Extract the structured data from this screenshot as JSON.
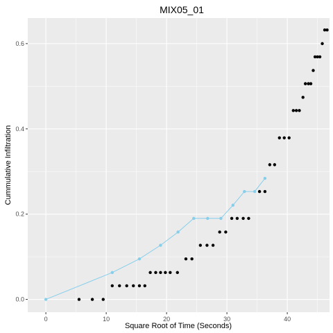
{
  "chart_data": {
    "type": "scatter",
    "title": "MIX05_01",
    "xlabel": "Square Root of Time (Seconds)",
    "ylabel": "Cummulative Infiltration",
    "xlim": [
      -3,
      47
    ],
    "ylim": [
      -0.03,
      0.66
    ],
    "xticks": [
      0,
      10,
      20,
      30,
      40
    ],
    "xtick_labels": [
      "0",
      "10",
      "20",
      "30",
      "40"
    ],
    "yticks": [
      0.0,
      0.2,
      0.4,
      0.6
    ],
    "ytick_labels": [
      "0.0",
      "0.2",
      "0.4",
      "0.6"
    ],
    "grid": true,
    "legend": "none",
    "colors": {
      "panel": "#ebebeb",
      "grid_major": "#ffffff",
      "observed": "#000000",
      "fitted": "#87ceeb"
    },
    "series": [
      {
        "type": "scatter",
        "points": [
          [
            5.5,
            0.0
          ],
          [
            7.7,
            0.0
          ],
          [
            9.5,
            0.0
          ],
          [
            11.0,
            0.032
          ],
          [
            12.2,
            0.032
          ],
          [
            13.4,
            0.032
          ],
          [
            14.5,
            0.032
          ],
          [
            15.5,
            0.032
          ],
          [
            16.4,
            0.032
          ],
          [
            17.3,
            0.063
          ],
          [
            18.2,
            0.063
          ],
          [
            19.0,
            0.063
          ],
          [
            19.8,
            0.063
          ],
          [
            20.6,
            0.063
          ],
          [
            21.8,
            0.063
          ],
          [
            23.2,
            0.095
          ],
          [
            24.2,
            0.095
          ],
          [
            25.6,
            0.127
          ],
          [
            26.7,
            0.127
          ],
          [
            27.7,
            0.127
          ],
          [
            28.8,
            0.158
          ],
          [
            29.8,
            0.158
          ],
          [
            30.8,
            0.19
          ],
          [
            31.7,
            0.19
          ],
          [
            32.7,
            0.19
          ],
          [
            33.6,
            0.19
          ],
          [
            35.4,
            0.253
          ],
          [
            36.3,
            0.253
          ],
          [
            37.1,
            0.316
          ],
          [
            37.9,
            0.316
          ],
          [
            38.7,
            0.379
          ],
          [
            39.5,
            0.379
          ],
          [
            40.3,
            0.379
          ],
          [
            41.0,
            0.443
          ],
          [
            41.5,
            0.443
          ],
          [
            42.0,
            0.443
          ],
          [
            42.6,
            0.474
          ],
          [
            43.0,
            0.506
          ],
          [
            43.5,
            0.506
          ],
          [
            43.9,
            0.506
          ],
          [
            44.3,
            0.537
          ],
          [
            44.6,
            0.569
          ],
          [
            45.0,
            0.569
          ],
          [
            45.4,
            0.569
          ],
          [
            45.8,
            0.6
          ],
          [
            46.2,
            0.632
          ],
          [
            46.6,
            0.632
          ]
        ]
      },
      {
        "type": "line",
        "points": [
          [
            0.0,
            0.0
          ],
          [
            11.0,
            0.063
          ],
          [
            15.5,
            0.095
          ],
          [
            19.0,
            0.127
          ],
          [
            21.9,
            0.158
          ],
          [
            24.5,
            0.19
          ],
          [
            26.8,
            0.19
          ],
          [
            29.0,
            0.19
          ],
          [
            31.0,
            0.221
          ],
          [
            32.9,
            0.253
          ],
          [
            34.6,
            0.253
          ],
          [
            36.3,
            0.284
          ]
        ]
      }
    ]
  }
}
